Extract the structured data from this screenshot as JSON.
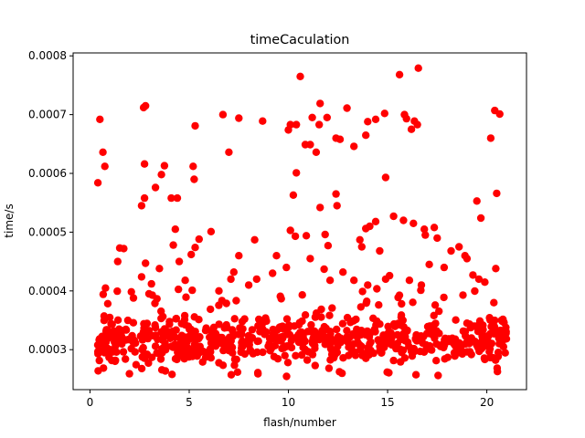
{
  "chart_data": {
    "type": "scatter",
    "title": "timeCaculation",
    "xlabel": "flash/number",
    "ylabel": "time/s",
    "xlim": [
      -0.85,
      22.0
    ],
    "ylim": [
      0.000232,
      0.000805
    ],
    "xticks": [
      0,
      5,
      10,
      15,
      20
    ],
    "xtick_labels": [
      "0",
      "5",
      "10",
      "15",
      "20"
    ],
    "yticks": [
      0.0003,
      0.0004,
      0.0005,
      0.0006,
      0.0007,
      0.0008
    ],
    "ytick_labels": [
      "0.0003",
      "0.0004",
      "0.0005",
      "0.0006",
      "0.0007",
      "0.0008"
    ],
    "marker_color": "#ff0000",
    "grid": false,
    "legend": "none",
    "series": [
      {
        "points": [
          [
            0.4,
            0.000584
          ],
          [
            0.5,
            0.000692
          ],
          [
            0.65,
            0.000636
          ],
          [
            0.75,
            0.000612
          ],
          [
            2.7,
            0.000712
          ],
          [
            2.8,
            0.000715
          ],
          [
            2.75,
            0.000616
          ],
          [
            2.6,
            0.000545
          ],
          [
            2.75,
            0.000558
          ],
          [
            3.3,
            0.000576
          ],
          [
            3.6,
            0.000598
          ],
          [
            3.75,
            0.000613
          ],
          [
            4.1,
            0.000558
          ],
          [
            4.4,
            0.000558
          ],
          [
            5.3,
            0.000681
          ],
          [
            5.2,
            0.000612
          ],
          [
            5.25,
            0.00059
          ],
          [
            6.7,
            0.0007
          ],
          [
            7.0,
            0.000636
          ],
          [
            7.5,
            0.000694
          ],
          [
            8.7,
            0.000689
          ],
          [
            10.0,
            0.000674
          ],
          [
            10.1,
            0.000683
          ],
          [
            10.4,
            0.000683
          ],
          [
            10.6,
            0.000765
          ],
          [
            10.85,
            0.000649
          ],
          [
            11.1,
            0.000649
          ],
          [
            11.4,
            0.000636
          ],
          [
            11.2,
            0.000695
          ],
          [
            11.6,
            0.000719
          ],
          [
            11.55,
            0.000683
          ],
          [
            11.95,
            0.000695
          ],
          [
            12.6,
            0.000658
          ],
          [
            12.4,
            0.00066
          ],
          [
            12.95,
            0.000711
          ],
          [
            13.3,
            0.000646
          ],
          [
            13.9,
            0.000665
          ],
          [
            14.0,
            0.000688
          ],
          [
            14.4,
            0.000692
          ],
          [
            14.85,
            0.000702
          ],
          [
            14.9,
            0.000593
          ],
          [
            15.6,
            0.000768
          ],
          [
            15.85,
            0.0007
          ],
          [
            15.95,
            0.000693
          ],
          [
            16.2,
            0.000675
          ],
          [
            16.35,
            0.000689
          ],
          [
            16.55,
            0.000779
          ],
          [
            16.5,
            0.000683
          ],
          [
            20.2,
            0.00066
          ],
          [
            20.4,
            0.000707
          ],
          [
            20.65,
            0.000701
          ],
          [
            10.4,
            0.000601
          ],
          [
            10.25,
            0.000563
          ],
          [
            11.6,
            0.000542
          ],
          [
            12.4,
            0.000565
          ],
          [
            20.5,
            0.000566
          ],
          [
            19.5,
            0.000553
          ],
          [
            19.7,
            0.000524
          ],
          [
            4.3,
            0.000505
          ],
          [
            4.2,
            0.000478
          ],
          [
            5.5,
            0.000488
          ],
          [
            5.3,
            0.000474
          ],
          [
            6.1,
            0.000501
          ],
          [
            7.5,
            0.00046
          ],
          [
            8.3,
            0.000487
          ],
          [
            9.4,
            0.00046
          ],
          [
            10.1,
            0.000503
          ],
          [
            10.35,
            0.000493
          ],
          [
            10.9,
            0.000494
          ],
          [
            11.85,
            0.000496
          ],
          [
            12.0,
            0.000477
          ],
          [
            12.45,
            0.000545
          ],
          [
            13.6,
            0.000487
          ],
          [
            13.9,
            0.000506
          ],
          [
            14.1,
            0.00051
          ],
          [
            14.4,
            0.000518
          ],
          [
            15.3,
            0.000527
          ],
          [
            15.8,
            0.00052
          ],
          [
            16.3,
            0.000515
          ],
          [
            16.85,
            0.000505
          ],
          [
            16.9,
            0.000495
          ],
          [
            17.35,
            0.000508
          ],
          [
            17.5,
            0.00049
          ],
          [
            18.2,
            0.000468
          ],
          [
            18.6,
            0.000475
          ],
          [
            14.6,
            0.000468
          ],
          [
            13.7,
            0.000475
          ],
          [
            1.4,
            0.00045
          ],
          [
            1.5,
            0.000473
          ],
          [
            1.7,
            0.000472
          ],
          [
            2.8,
            0.000447
          ],
          [
            3.5,
            0.000438
          ],
          [
            4.5,
            0.00045
          ],
          [
            5.1,
            0.000462
          ],
          [
            6.5,
            0.0004
          ],
          [
            7.25,
            0.000432
          ],
          [
            7.1,
            0.00042
          ],
          [
            8.4,
            0.00042
          ],
          [
            9.2,
            0.00043
          ],
          [
            9.9,
            0.00044
          ],
          [
            11.1,
            0.000455
          ],
          [
            11.8,
            0.000437
          ],
          [
            12.1,
            0.000418
          ],
          [
            12.75,
            0.000432
          ],
          [
            13.3,
            0.000418
          ],
          [
            14.9,
            0.00042
          ],
          [
            15.1,
            0.000426
          ],
          [
            16.1,
            0.000418
          ],
          [
            16.7,
            0.00041
          ],
          [
            17.1,
            0.000445
          ],
          [
            17.85,
            0.00044
          ],
          [
            18.9,
            0.00046
          ],
          [
            19.0,
            0.000455
          ],
          [
            19.3,
            0.000427
          ],
          [
            19.6,
            0.00042
          ],
          [
            19.9,
            0.000415
          ],
          [
            20.45,
            0.000438
          ],
          [
            2.6,
            0.000424
          ],
          [
            3.1,
            0.000412
          ],
          [
            4.8,
            0.000418
          ],
          [
            8.0,
            0.00041
          ],
          [
            14.0,
            0.00041
          ]
        ]
      }
    ],
    "dense_band": {
      "x_range": [
        0.3,
        21.0
      ],
      "y_min": 0.000252,
      "y_max": 0.000405,
      "approx_points": 700,
      "concentrated_range": [
        0.000275,
        0.00036
      ]
    }
  }
}
